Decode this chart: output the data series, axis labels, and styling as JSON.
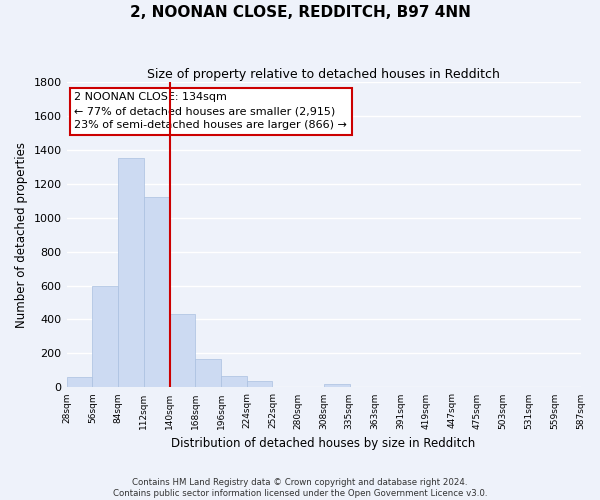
{
  "title": "2, NOONAN CLOSE, REDDITCH, B97 4NN",
  "subtitle": "Size of property relative to detached houses in Redditch",
  "xlabel": "Distribution of detached houses by size in Redditch",
  "ylabel": "Number of detached properties",
  "bar_edges": [
    28,
    56,
    84,
    112,
    140,
    168,
    196,
    224,
    252,
    280,
    308,
    335,
    363,
    391,
    419,
    447,
    475,
    503,
    531,
    559,
    587
  ],
  "bar_heights": [
    60,
    600,
    1350,
    1120,
    430,
    170,
    65,
    35,
    5,
    5,
    20,
    0,
    0,
    0,
    0,
    0,
    0,
    0,
    0,
    0
  ],
  "bar_color": "#ccdaf2",
  "bar_edgecolor": "#aac0e0",
  "vline_x": 140,
  "vline_color": "#cc0000",
  "annotation_text": "2 NOONAN CLOSE: 134sqm\n← 77% of detached houses are smaller (2,915)\n23% of semi-detached houses are larger (866) →",
  "annotation_box_color": "#ffffff",
  "annotation_box_edgecolor": "#cc0000",
  "ylim": [
    0,
    1800
  ],
  "yticks": [
    0,
    200,
    400,
    600,
    800,
    1000,
    1200,
    1400,
    1600,
    1800
  ],
  "tick_labels": [
    "28sqm",
    "56sqm",
    "84sqm",
    "112sqm",
    "140sqm",
    "168sqm",
    "196sqm",
    "224sqm",
    "252sqm",
    "280sqm",
    "308sqm",
    "335sqm",
    "363sqm",
    "391sqm",
    "419sqm",
    "447sqm",
    "475sqm",
    "503sqm",
    "531sqm",
    "559sqm",
    "587sqm"
  ],
  "footer_text": "Contains HM Land Registry data © Crown copyright and database right 2024.\nContains public sector information licensed under the Open Government Licence v3.0.",
  "background_color": "#eef2fa",
  "grid_color": "#ffffff",
  "title_fontsize": 11,
  "subtitle_fontsize": 9
}
